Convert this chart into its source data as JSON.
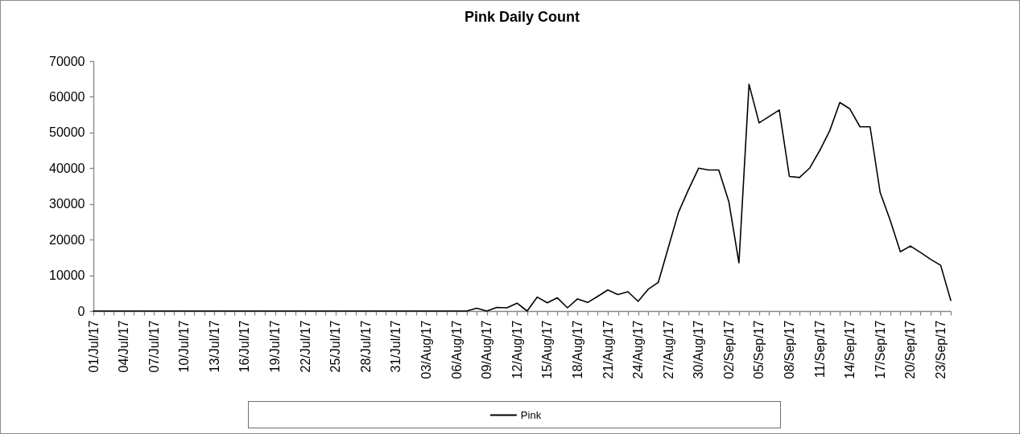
{
  "chart_data": {
    "type": "line",
    "title": "Pink Daily Count",
    "categories": [
      "01/Jul/17",
      null,
      null,
      "04/Jul/17",
      null,
      null,
      "07/Jul/17",
      null,
      null,
      "10/Jul/17",
      null,
      null,
      "13/Jul/17",
      null,
      null,
      "16/Jul/17",
      null,
      null,
      "19/Jul/17",
      null,
      null,
      "22/Jul/17",
      null,
      null,
      "25/Jul/17",
      null,
      null,
      "28/Jul/17",
      null,
      null,
      "31/Jul/17",
      null,
      null,
      "03/Aug/17",
      null,
      null,
      "06/Aug/17",
      null,
      null,
      "09/Aug/17",
      null,
      null,
      "12/Aug/17",
      null,
      null,
      "15/Aug/17",
      null,
      null,
      "18/Aug/17",
      null,
      null,
      "21/Aug/17",
      null,
      null,
      "24/Aug/17",
      null,
      null,
      "27/Aug/17",
      null,
      null,
      "30/Aug/17",
      null,
      null,
      "02/Sep/17",
      null,
      null,
      "05/Sep/17",
      null,
      null,
      "08/Sep/17",
      null,
      null,
      "11/Sep/17",
      null,
      null,
      "14/Sep/17",
      null,
      null,
      "17/Sep/17",
      null,
      null,
      "20/Sep/17",
      null,
      null,
      "23/Sep/17",
      null
    ],
    "series": [
      {
        "name": "Pink",
        "color": "#000000",
        "values": [
          0,
          0,
          0,
          0,
          0,
          0,
          0,
          0,
          0,
          0,
          0,
          0,
          0,
          0,
          0,
          0,
          0,
          0,
          0,
          0,
          0,
          0,
          0,
          0,
          0,
          0,
          0,
          0,
          0,
          0,
          0,
          0,
          0,
          0,
          0,
          0,
          0,
          0,
          800,
          0,
          1000,
          900,
          2200,
          0,
          3900,
          2300,
          3700,
          900,
          3400,
          2400,
          4100,
          5900,
          4600,
          5400,
          2700,
          6100,
          8000,
          17800,
          27600,
          34000,
          40000,
          39500,
          39500,
          30600,
          13500,
          63500,
          52700,
          54500,
          56300,
          37700,
          37400,
          40000,
          44900,
          50500,
          58400,
          56600,
          51600,
          51600,
          33200,
          25400,
          16600,
          18200,
          16400,
          14500,
          12800,
          3000
        ]
      }
    ],
    "ylim": [
      0,
      70000
    ],
    "yticks": [
      0,
      10000,
      20000,
      30000,
      40000,
      50000,
      60000,
      70000
    ],
    "grid": false,
    "legend": "bottom"
  }
}
